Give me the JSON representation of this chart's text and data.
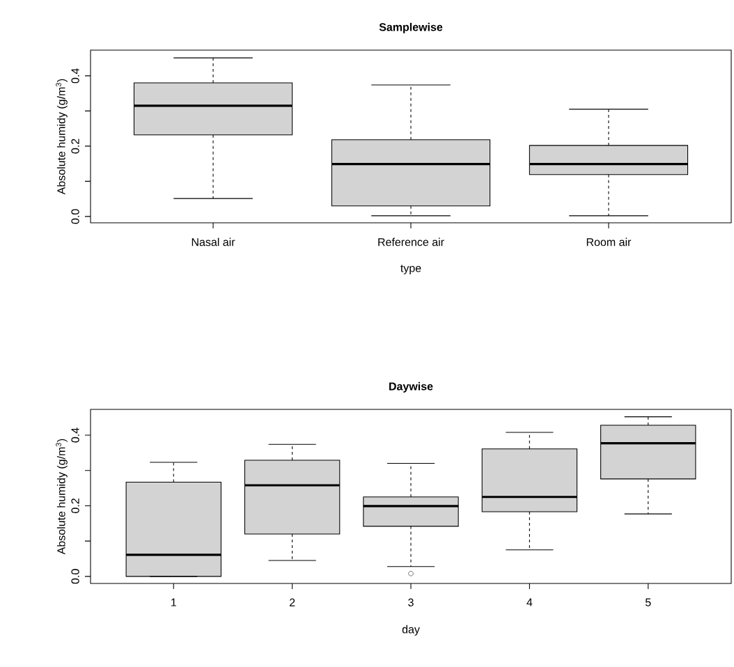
{
  "chart_data": [
    {
      "type": "box",
      "title": "Samplewise",
      "xlabel": "type",
      "ylabel": "Absolute humidy (g/m$^{3}$)",
      "categories": [
        "Nasal air",
        "Reference air",
        "Room air"
      ],
      "ylim": [
        -0.018,
        0.473
      ],
      "yticks": [
        {
          "value": 0,
          "label": "0.0"
        },
        {
          "value": 0.1,
          "label": null
        },
        {
          "value": 0.2,
          "label": "0.2"
        },
        {
          "value": 0.3,
          "label": null
        },
        {
          "value": 0.4,
          "label": "0.4"
        }
      ],
      "series": [
        {
          "color": "#d3d3d3",
          "boxes": [
            {
              "low": 0.051,
              "q1": 0.232,
              "median": 0.315,
              "q3": 0.38,
              "high": 0.451
            },
            {
              "low": 0.002,
              "q1": 0.03,
              "median": 0.149,
              "q3": 0.218,
              "high": 0.374
            },
            {
              "low": 0.002,
              "q1": 0.119,
              "median": 0.149,
              "q3": 0.202,
              "high": 0.305
            }
          ]
        }
      ]
    },
    {
      "type": "box",
      "title": "Daywise",
      "xlabel": "day",
      "ylabel": "Absolute humidy (g/m$^{3}$)",
      "categories": [
        "1",
        "2",
        "3",
        "4",
        "5"
      ],
      "ylim": [
        -0.02,
        0.473
      ],
      "yticks": [
        {
          "value": 0,
          "label": "0.0"
        },
        {
          "value": 0.1,
          "label": null
        },
        {
          "value": 0.2,
          "label": "0.2"
        },
        {
          "value": 0.3,
          "label": null
        },
        {
          "value": 0.4,
          "label": "0.4"
        }
      ],
      "series": [
        {
          "color": "#d3d3d3",
          "boxes": [
            {
              "low": 0.0,
              "q1": 0.0,
              "median": 0.061,
              "q3": 0.267,
              "high": 0.323
            },
            {
              "low": 0.045,
              "q1": 0.12,
              "median": 0.258,
              "q3": 0.329,
              "high": 0.374
            },
            {
              "low": 0.028,
              "q1": 0.142,
              "median": 0.199,
              "q3": 0.225,
              "high": 0.32,
              "outliers": [
                0.008
              ]
            },
            {
              "low": 0.075,
              "q1": 0.183,
              "median": 0.225,
              "q3": 0.361,
              "high": 0.408
            },
            {
              "low": 0.177,
              "q1": 0.276,
              "median": 0.377,
              "q3": 0.428,
              "high": 0.452
            }
          ]
        }
      ]
    }
  ]
}
